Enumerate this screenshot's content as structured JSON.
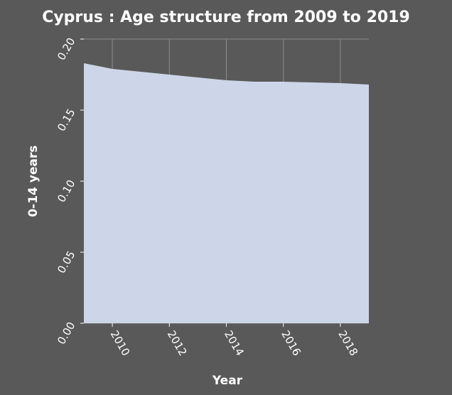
{
  "chart_data": {
    "type": "area",
    "title": "Cyprus : Age structure from 2009 to 2019",
    "xlabel": "Year",
    "ylabel": "0-14 years",
    "x": [
      2009,
      2010,
      2011,
      2012,
      2013,
      2014,
      2015,
      2016,
      2017,
      2018,
      2019
    ],
    "values": [
      0.183,
      0.179,
      0.177,
      0.175,
      0.173,
      0.171,
      0.17,
      0.17,
      0.1695,
      0.169,
      0.168
    ],
    "xlim": [
      2009,
      2019
    ],
    "ylim": [
      0,
      0.2
    ],
    "xticks": [
      "2010",
      "2012",
      "2014",
      "2016",
      "2018"
    ],
    "yticks": [
      "0.00",
      "0.05",
      "0.10",
      "0.15",
      "0.20"
    ],
    "grid": true,
    "fill_color": "#ccd6e8",
    "background_color": "#595959",
    "grid_color": "#8c8c8c"
  }
}
